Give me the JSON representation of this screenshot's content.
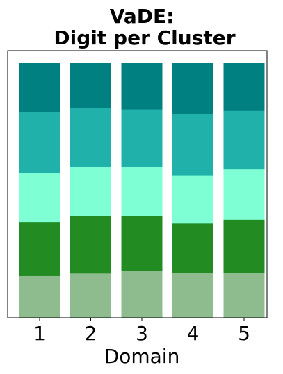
{
  "chart_data": {
    "type": "bar",
    "stacked": true,
    "title_lines": [
      "VaDE:",
      "Digit per Cluster"
    ],
    "xlabel": "Domain",
    "ylabel": "",
    "categories": [
      "1",
      "2",
      "3",
      "4",
      "5"
    ],
    "ylim": [
      0,
      1
    ],
    "y_ticks_visible": false,
    "grid": false,
    "legend": "none",
    "series": [
      {
        "color": "#8fbc8f",
        "values": [
          0.165,
          0.175,
          0.185,
          0.178,
          0.178
        ]
      },
      {
        "color": "#228b22",
        "values": [
          0.212,
          0.225,
          0.215,
          0.193,
          0.208
        ]
      },
      {
        "color": "#7fffd4",
        "values": [
          0.193,
          0.195,
          0.195,
          0.19,
          0.198
        ]
      },
      {
        "color": "#20b2aa",
        "values": [
          0.24,
          0.23,
          0.225,
          0.24,
          0.23
        ]
      },
      {
        "color": "#008080",
        "values": [
          0.19,
          0.175,
          0.18,
          0.199,
          0.186
        ]
      }
    ]
  }
}
